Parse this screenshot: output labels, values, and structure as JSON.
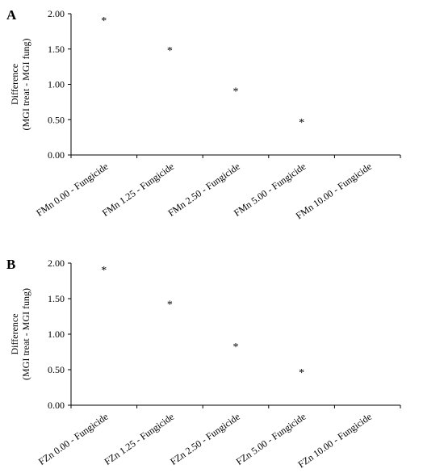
{
  "chart_data": [
    {
      "panel": "A",
      "type": "scatter",
      "categories": [
        "FMn 0.00 - Fungicide",
        "FMn 1.25 - Fungicide",
        "FMn 2.50 - Fungicide",
        "FMn 5.00 - Fungicide",
        "FMn 10.00 - Fungicide"
      ],
      "values": [
        1.92,
        1.5,
        0.92,
        0.48,
        null
      ],
      "point_labels": [
        "*",
        "*",
        "*",
        "*",
        ""
      ],
      "ylabel_line1": "Difference",
      "ylabel_line2": "(MGI treat - MGI fung)",
      "yticks": [
        "0.00",
        "0.50",
        "1.00",
        "1.50",
        "2.00"
      ],
      "ylim": [
        0,
        2
      ],
      "grid": false
    },
    {
      "panel": "B",
      "type": "scatter",
      "categories": [
        "FZn 0.00 - Fungicide",
        "FZn 1.25 - Fungicide",
        "FZn 2.50 - Fungicide",
        "FZn 5.00 - Fungicide",
        "FZn 10.00 - Fungicide"
      ],
      "values": [
        1.92,
        1.44,
        0.84,
        0.48,
        null
      ],
      "point_labels": [
        "*",
        "*",
        "*",
        "*",
        ""
      ],
      "ylabel_line1": "Difference",
      "ylabel_line2": "(MGI treat - MGI fung)",
      "yticks": [
        "0.00",
        "0.50",
        "1.00",
        "1.50",
        "2.00"
      ],
      "ylim": [
        0,
        2
      ],
      "grid": false
    }
  ]
}
